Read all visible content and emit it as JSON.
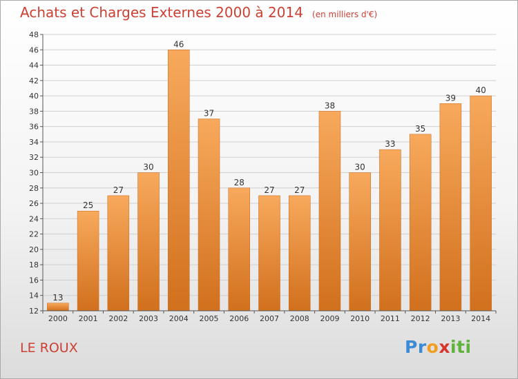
{
  "brand_text": "Proxiti",
  "commune_name": "LE ROUX",
  "colors": {
    "title": "#cc3f32",
    "bar_light": "#f8a95c",
    "bar_dark": "#d1701d",
    "axis": "#555555",
    "grid": "#cfcfcf"
  },
  "chart_data": {
    "type": "bar",
    "title": "Achats et Charges Externes 2000 à 2014",
    "unit": "(en milliers d'€)",
    "xlabel": "",
    "ylabel": "",
    "categories": [
      "2000",
      "2001",
      "2002",
      "2003",
      "2004",
      "2005",
      "2006",
      "2007",
      "2008",
      "2009",
      "2010",
      "2011",
      "2012",
      "2013",
      "2014"
    ],
    "values": [
      13,
      25,
      27,
      30,
      46,
      37,
      28,
      27,
      27,
      38,
      30,
      33,
      35,
      39,
      40
    ],
    "ylim": [
      12,
      48
    ],
    "yticks": [
      12,
      14,
      16,
      18,
      20,
      22,
      24,
      26,
      28,
      30,
      32,
      34,
      36,
      38,
      40,
      42,
      44,
      46,
      48
    ],
    "grid": true,
    "legend": "none"
  }
}
